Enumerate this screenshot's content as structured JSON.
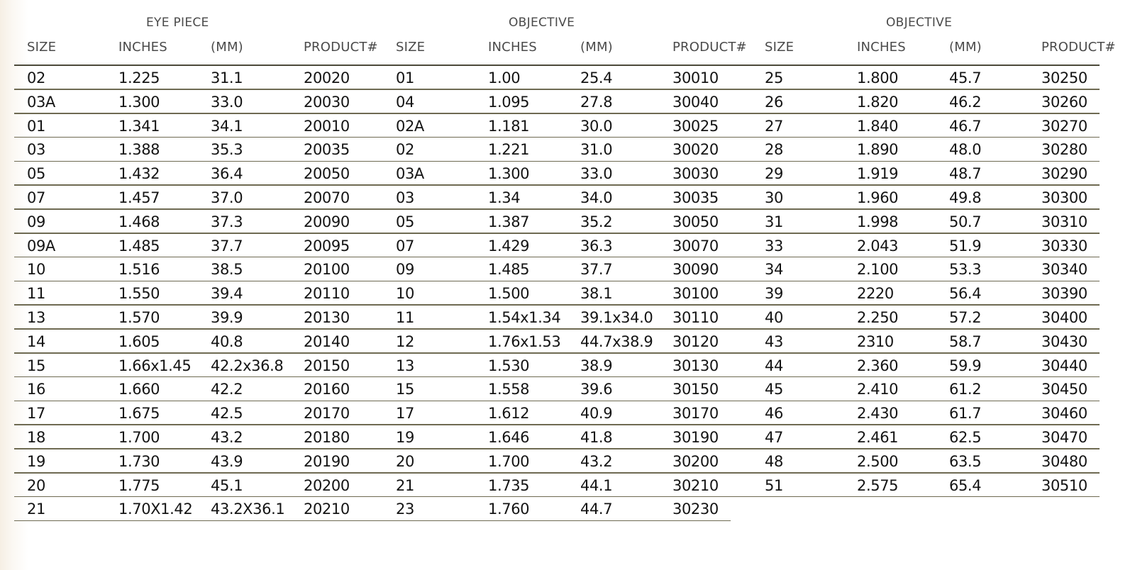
{
  "group_headers": {
    "eyepiece": "EYE PIECE",
    "objective_1": "OBJECTIVE",
    "objective_2": "OBJECTIVE"
  },
  "column_headers": [
    "SIZE",
    "INCHES",
    "(MM)",
    "PRODUCT#",
    "SIZE",
    "INCHES",
    "(MM)",
    "PRODUCT#",
    "SIZE",
    "INCHES",
    "(MM)",
    "PRODUCT#"
  ],
  "rows": [
    [
      "02",
      "1.225",
      "31.1",
      "20020",
      "01",
      "1.00",
      "25.4",
      "30010",
      "25",
      "1.800",
      "45.7",
      "30250"
    ],
    [
      "03A",
      "1.300",
      "33.0",
      "20030",
      "04",
      "1.095",
      "27.8",
      "30040",
      "26",
      "1.820",
      "46.2",
      "30260"
    ],
    [
      "01",
      "1.341",
      "34.1",
      "20010",
      "02A",
      "1.181",
      "30.0",
      "30025",
      "27",
      "1.840",
      "46.7",
      "30270"
    ],
    [
      "03",
      "1.388",
      "35.3",
      "20035",
      "02",
      "1.221",
      "31.0",
      "30020",
      "28",
      "1.890",
      "48.0",
      "30280"
    ],
    [
      "05",
      "1.432",
      "36.4",
      "20050",
      "03A",
      "1.300",
      "33.0",
      "30030",
      "29",
      "1.919",
      "48.7",
      "30290"
    ],
    [
      "07",
      "1.457",
      "37.0",
      "20070",
      "03",
      "1.34",
      "34.0",
      "30035",
      "30",
      "1.960",
      "49.8",
      "30300"
    ],
    [
      "09",
      "1.468",
      "37.3",
      "20090",
      "05",
      "1.387",
      "35.2",
      "30050",
      "31",
      "1.998",
      "50.7",
      "30310"
    ],
    [
      "09A",
      "1.485",
      "37.7",
      "20095",
      "07",
      "1.429",
      "36.3",
      "30070",
      "33",
      "2.043",
      "51.9",
      "30330"
    ],
    [
      "10",
      "1.516",
      "38.5",
      "20100",
      "09",
      "1.485",
      "37.7",
      "30090",
      "34",
      "2.100",
      "53.3",
      "30340"
    ],
    [
      "11",
      "1.550",
      "39.4",
      "20110",
      "10",
      "1.500",
      "38.1",
      "30100",
      "39",
      "2220",
      "56.4",
      "30390"
    ],
    [
      "13",
      "1.570",
      "39.9",
      "20130",
      "11",
      "1.54x1.34",
      "39.1x34.0",
      "30110",
      "40",
      "2.250",
      "57.2",
      "30400"
    ],
    [
      "14",
      "1.605",
      "40.8",
      "20140",
      "12",
      "1.76x1.53",
      "44.7x38.9",
      "30120",
      "43",
      "2310",
      "58.7",
      "30430"
    ],
    [
      "15",
      "1.66x1.45",
      "42.2x36.8",
      "20150",
      "13",
      "1.530",
      "38.9",
      "30130",
      "44",
      "2.360",
      "59.9",
      "30440"
    ],
    [
      "16",
      "1.660",
      "42.2",
      "20160",
      "15",
      "1.558",
      "39.6",
      "30150",
      "45",
      "2.410",
      "61.2",
      "30450"
    ],
    [
      "17",
      "1.675",
      "42.5",
      "20170",
      "17",
      "1.612",
      "40.9",
      "30170",
      "46",
      "2.430",
      "61.7",
      "30460"
    ],
    [
      "18",
      "1.700",
      "43.2",
      "20180",
      "19",
      "1.646",
      "41.8",
      "30190",
      "47",
      "2.461",
      "62.5",
      "30470"
    ],
    [
      "19",
      "1.730",
      "43.9",
      "20190",
      "20",
      "1.700",
      "43.2",
      "30200",
      "48",
      "2.500",
      "63.5",
      "30480"
    ],
    [
      "20",
      "1.775",
      "45.1",
      "20200",
      "21",
      "1.735",
      "44.1",
      "30210",
      "51",
      "2.575",
      "65.4",
      "30510"
    ],
    [
      "21",
      "1.70X1.42",
      "43.2X36.1",
      "20210",
      "23",
      "1.760",
      "44.7",
      "30230",
      "",
      "",
      "",
      ""
    ]
  ],
  "colors": {
    "rule": "#6e6a52",
    "header_text": "#4a4a4a",
    "cell_text": "#141414"
  }
}
